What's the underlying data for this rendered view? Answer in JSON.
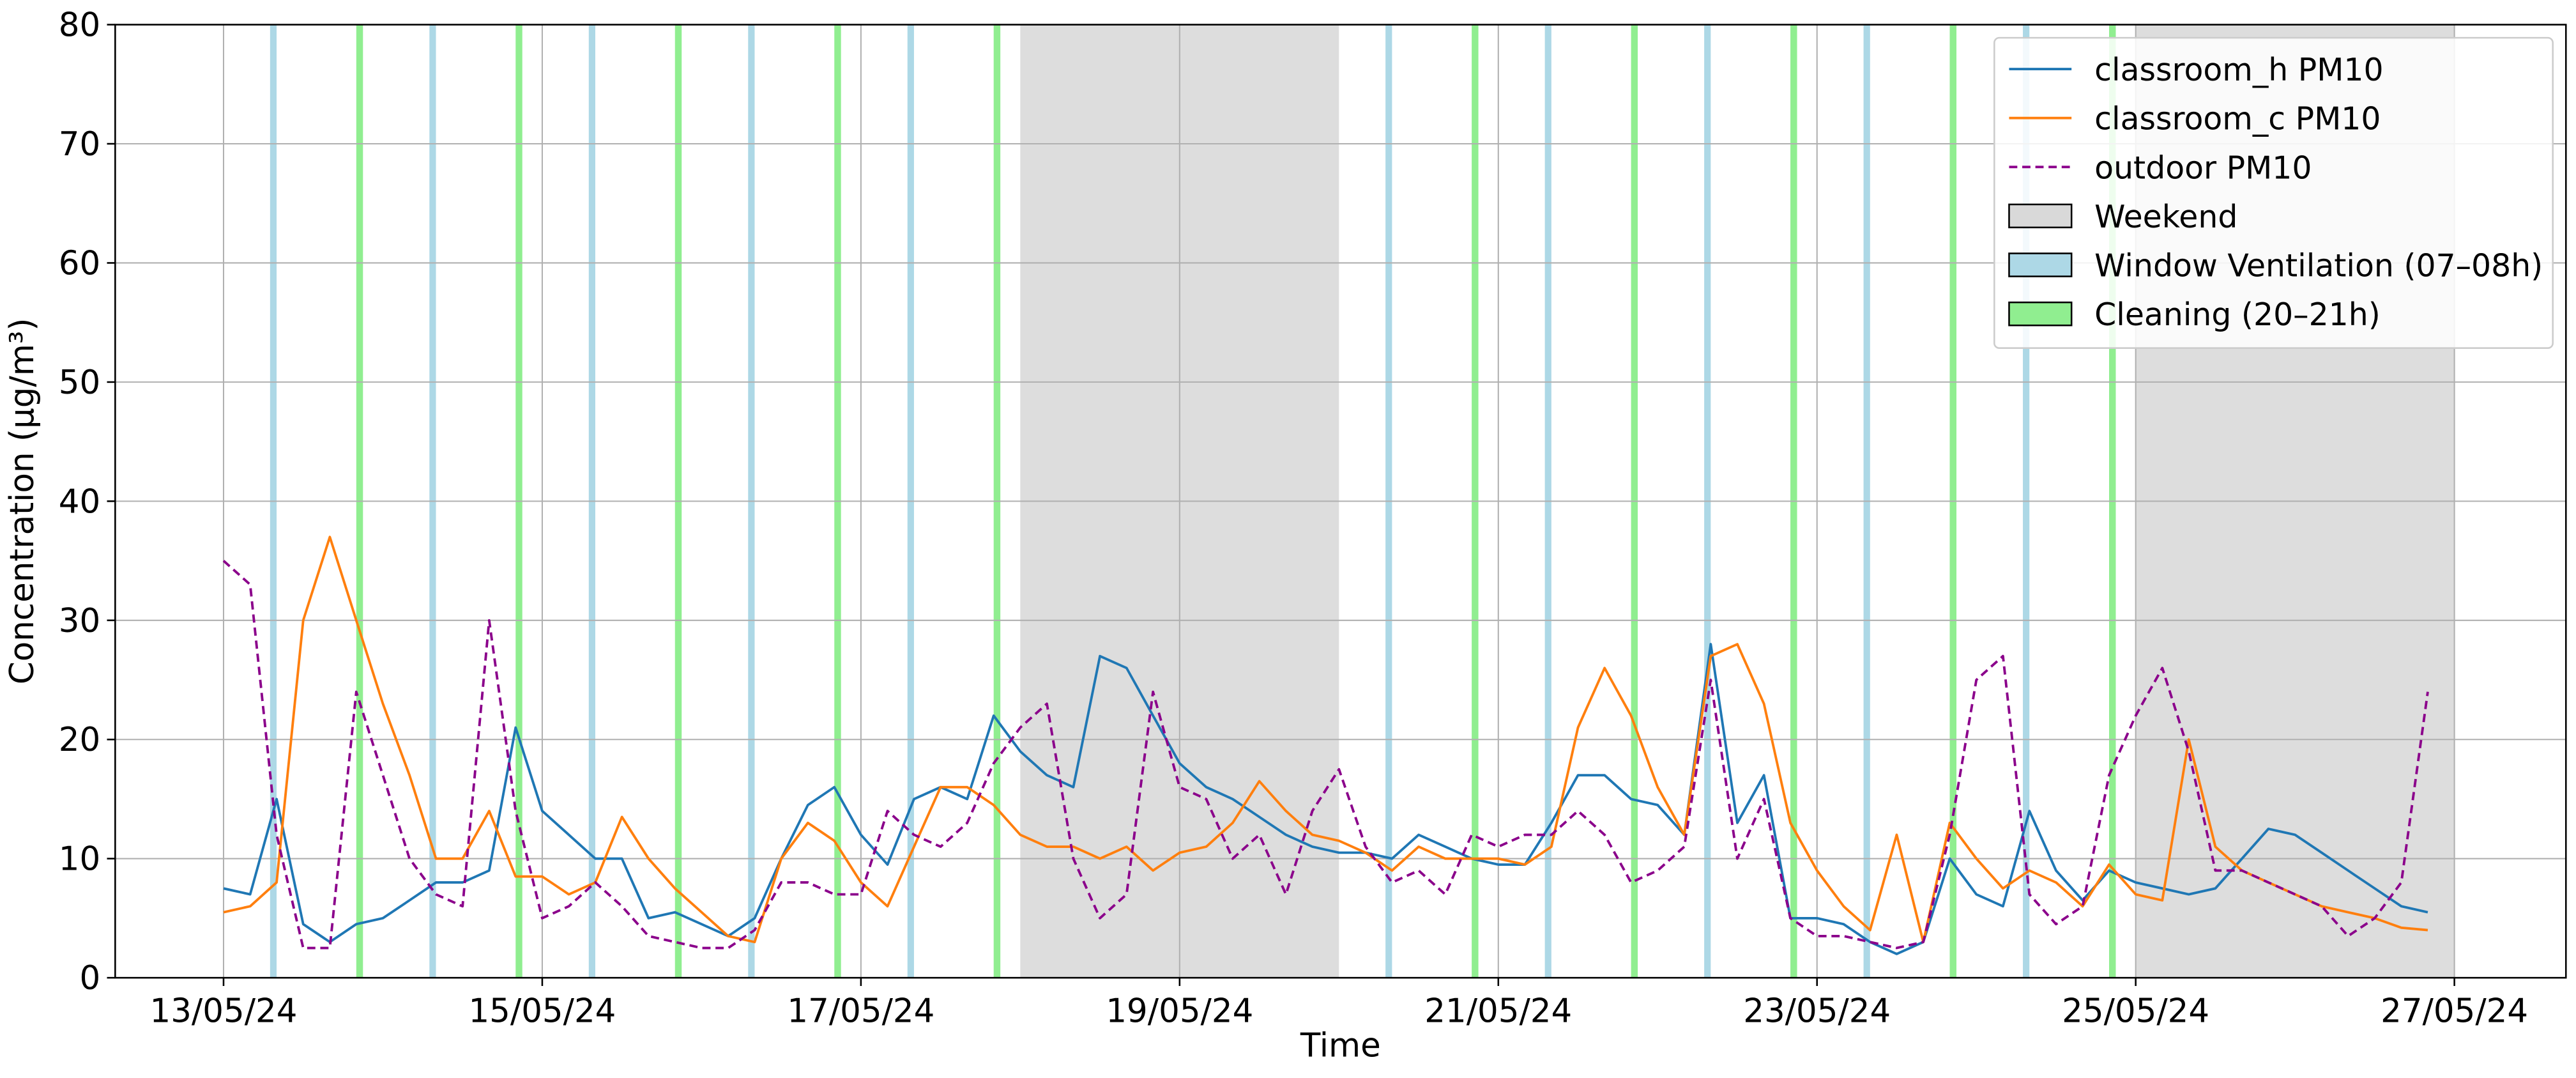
{
  "chart_data": {
    "type": "line",
    "xlabel": "Time",
    "ylabel": "Concentration (µg/m³)",
    "xlim": [
      -0.68,
      14.7
    ],
    "ylim": [
      0,
      80
    ],
    "yticks": [
      0,
      10,
      20,
      30,
      40,
      50,
      60,
      70,
      80
    ],
    "xticks": [
      {
        "value": 0,
        "label": "13/05/24"
      },
      {
        "value": 2,
        "label": "15/05/24"
      },
      {
        "value": 4,
        "label": "17/05/24"
      },
      {
        "value": 6,
        "label": "19/05/24"
      },
      {
        "value": 8,
        "label": "21/05/24"
      },
      {
        "value": 10,
        "label": "23/05/24"
      },
      {
        "value": 12,
        "label": "25/05/24"
      },
      {
        "value": 14,
        "label": "27/05/24"
      }
    ],
    "grid": true,
    "legend": "upper right",
    "spans": [
      {
        "name": "Weekend",
        "color": "#d9d9d9",
        "ranges": [
          [
            5,
            7
          ],
          [
            12,
            14
          ]
        ]
      },
      {
        "name": "Window Ventilation (07–08h)",
        "color": "#add8e6",
        "ranges": [
          [
            0.292,
            0.333
          ],
          [
            1.292,
            1.333
          ],
          [
            2.292,
            2.333
          ],
          [
            3.292,
            3.333
          ],
          [
            4.292,
            4.333
          ],
          [
            7.292,
            7.333
          ],
          [
            8.292,
            8.333
          ],
          [
            9.292,
            9.333
          ],
          [
            10.292,
            10.333
          ],
          [
            11.292,
            11.333
          ]
        ]
      },
      {
        "name": "Cleaning (20–21h)",
        "color": "#90ee90",
        "ranges": [
          [
            0.833,
            0.875
          ],
          [
            1.833,
            1.875
          ],
          [
            2.833,
            2.875
          ],
          [
            3.833,
            3.875
          ],
          [
            4.833,
            4.875
          ],
          [
            7.833,
            7.875
          ],
          [
            8.833,
            8.875
          ],
          [
            9.833,
            9.875
          ],
          [
            10.833,
            10.875
          ],
          [
            11.833,
            11.875
          ]
        ]
      }
    ],
    "x": [
      0,
      0.167,
      0.333,
      0.5,
      0.667,
      0.833,
      1,
      1.167,
      1.333,
      1.5,
      1.667,
      1.833,
      2,
      2.167,
      2.333,
      2.5,
      2.667,
      2.833,
      3,
      3.167,
      3.333,
      3.5,
      3.667,
      3.833,
      4,
      4.167,
      4.333,
      4.5,
      4.667,
      4.833,
      5,
      5.167,
      5.333,
      5.5,
      5.667,
      5.833,
      6,
      6.167,
      6.333,
      6.5,
      6.667,
      6.833,
      7,
      7.167,
      7.333,
      7.5,
      7.667,
      7.833,
      8,
      8.167,
      8.333,
      8.5,
      8.667,
      8.833,
      9,
      9.167,
      9.333,
      9.5,
      9.667,
      9.833,
      10,
      10.167,
      10.333,
      10.5,
      10.667,
      10.833,
      11,
      11.167,
      11.333,
      11.5,
      11.667,
      11.833,
      12,
      12.167,
      12.333,
      12.5,
      12.667,
      12.833,
      13,
      13.167,
      13.333,
      13.5,
      13.667,
      13.833
    ],
    "series": [
      {
        "name": "classroom_h PM10",
        "color": "#1f77b4",
        "style": "solid",
        "values": [
          7.5,
          7,
          15,
          4.5,
          3,
          4.5,
          5,
          6.5,
          8,
          8,
          9,
          21,
          14,
          12,
          10,
          10,
          5,
          5.5,
          4.5,
          3.5,
          5,
          10,
          14.5,
          16,
          12,
          9.5,
          15,
          16,
          15,
          22,
          19,
          17,
          16,
          27,
          26,
          22,
          18,
          16,
          15,
          13.5,
          12,
          11,
          10.5,
          10.5,
          10,
          12,
          11,
          10,
          9.5,
          9.5,
          13,
          17,
          17,
          15,
          14.5,
          12,
          28,
          13,
          17,
          5,
          5,
          4.5,
          3,
          2,
          3,
          10,
          7,
          6,
          14,
          9,
          6.5,
          9,
          8,
          7.5,
          7,
          7.5,
          10,
          12.5,
          12,
          10.5,
          9,
          7.5,
          6,
          5.5
        ]
      },
      {
        "name": "classroom_c PM10",
        "color": "#ff7f0e",
        "style": "solid",
        "values": [
          5.5,
          6,
          8,
          30,
          37,
          30,
          23,
          17,
          10,
          10,
          14,
          8.5,
          8.5,
          7,
          8,
          13.5,
          10,
          7.5,
          5.5,
          3.5,
          3,
          10,
          13,
          11.5,
          8,
          6,
          11,
          16,
          16,
          14.5,
          12,
          11,
          11,
          10,
          11,
          9,
          10.5,
          11,
          13,
          16.5,
          14,
          12,
          11.5,
          10.5,
          9,
          11,
          10,
          10,
          10,
          9.5,
          11,
          21,
          26,
          22,
          16,
          12,
          27,
          28,
          23,
          13,
          9,
          6,
          4,
          12,
          3,
          13,
          10,
          7.5,
          9,
          8,
          6,
          9.5,
          7,
          6.5,
          20,
          11,
          9,
          8,
          7,
          6,
          5.5,
          5,
          4.2,
          4
        ]
      },
      {
        "name": "outdoor PM10",
        "color": "#8b008b",
        "style": "dashed",
        "values": [
          35,
          33,
          12,
          2.5,
          2.5,
          24,
          17,
          10,
          7,
          6,
          30,
          14,
          5,
          6,
          8,
          6,
          3.5,
          3,
          2.5,
          2.5,
          4,
          8,
          8,
          7,
          7,
          14,
          12,
          11,
          13,
          18,
          21,
          23,
          10,
          5,
          7,
          24,
          16,
          15,
          10,
          12,
          7,
          14,
          17.5,
          11,
          8,
          9,
          7,
          12,
          11,
          12,
          12,
          14,
          12,
          8,
          9,
          11,
          25,
          10,
          15,
          5,
          3.5,
          3.5,
          3,
          2.5,
          3,
          12,
          25,
          27,
          7,
          4.5,
          6,
          17,
          22,
          26,
          19,
          9,
          9,
          8,
          7,
          6,
          3.5,
          5,
          8,
          24
        ]
      }
    ]
  }
}
